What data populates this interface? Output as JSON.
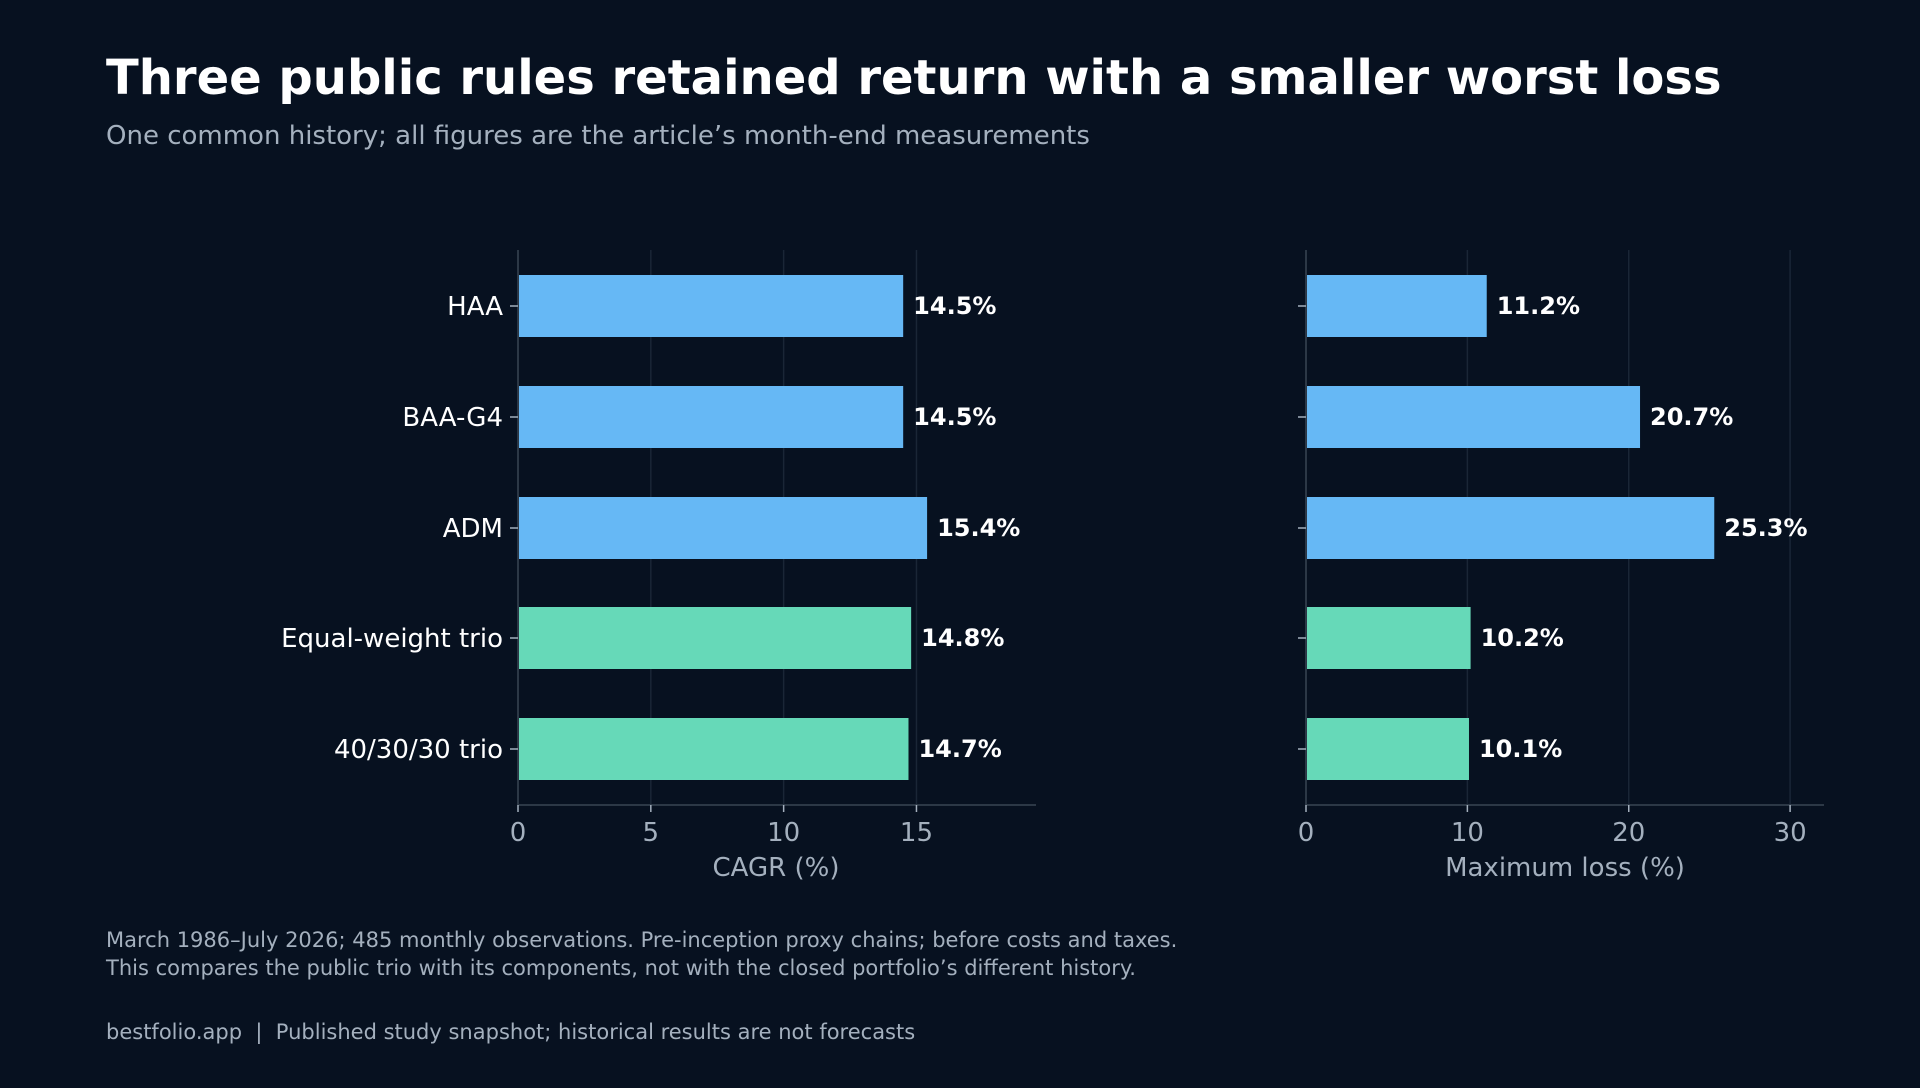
{
  "header": {
    "title": "Three public rules retained return with a smaller worst loss",
    "subtitle": "One common history; all figures are the article’s month-end measurements"
  },
  "chart_data": [
    {
      "type": "bar",
      "orientation": "horizontal",
      "categories": [
        "HAA",
        "BAA-G4",
        "ADM",
        "Equal-weight trio",
        "40/30/30 trio"
      ],
      "values": [
        14.5,
        14.5,
        15.4,
        14.8,
        14.7
      ],
      "data_labels": [
        "14.5%",
        "14.5%",
        "15.4%",
        "14.8%",
        "14.7%"
      ],
      "colors": [
        "#66b8f5",
        "#66b8f5",
        "#66b8f5",
        "#66d9b8",
        "#66d9b8"
      ],
      "xlabel": "CAGR (%)",
      "xlim": [
        0,
        19.5
      ],
      "xticks": [
        0,
        5,
        10,
        15
      ],
      "grid": true
    },
    {
      "type": "bar",
      "orientation": "horizontal",
      "categories": [
        "HAA",
        "BAA-G4",
        "ADM",
        "Equal-weight trio",
        "40/30/30 trio"
      ],
      "values": [
        11.2,
        20.7,
        25.3,
        10.2,
        10.1
      ],
      "data_labels": [
        "11.2%",
        "20.7%",
        "25.3%",
        "10.2%",
        "10.1%"
      ],
      "colors": [
        "#66b8f5",
        "#66b8f5",
        "#66b8f5",
        "#66d9b8",
        "#66d9b8"
      ],
      "xlabel": "Maximum loss (%)",
      "xlim": [
        0,
        32.1
      ],
      "xticks": [
        0,
        10,
        20,
        30
      ],
      "grid": true
    }
  ],
  "footer": {
    "note_line1": "March 1986–July 2026; 485 monthly observations. Pre-inception proxy chains; before costs and taxes.",
    "note_line2": "This compares the public trio with its components, not with the closed portfolio’s different history.",
    "source": "bestfolio.app  |  Published study snapshot; historical results are not forecasts"
  },
  "colors": {
    "background": "#071120",
    "text": "#ffffff",
    "muted": "#a4b0be",
    "grid": "#1a2636",
    "axis": "#2c3846"
  }
}
